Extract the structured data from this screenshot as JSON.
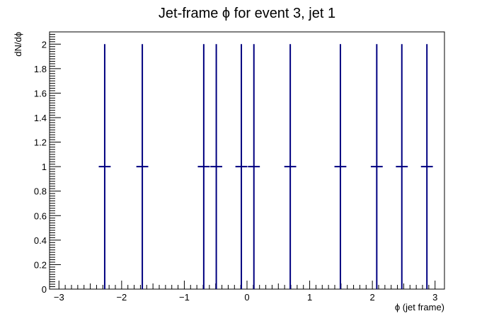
{
  "chart_data": {
    "type": "scatter",
    "title": "Jet-frame   ϕ for event 3, jet 1",
    "xlabel": "ϕ (jet frame)",
    "ylabel": "dN/dϕ",
    "xlim": [
      -3.15,
      3.15
    ],
    "ylim": [
      0,
      2.1
    ],
    "x_ticks": [
      -3,
      -2,
      -1,
      0,
      1,
      2,
      3
    ],
    "x_tick_labels": [
      "−3",
      "−2",
      "−1",
      "0",
      "1",
      "2",
      "3"
    ],
    "y_ticks": [
      0,
      0.2,
      0.4,
      0.6,
      0.8,
      1,
      1.2,
      1.4,
      1.6,
      1.8,
      2
    ],
    "y_tick_labels": [
      "0",
      "0.2",
      "0.4",
      "0.6",
      "0.8",
      "1",
      "1.2",
      "1.4",
      "1.6",
      "1.8",
      "2"
    ],
    "grid": false,
    "series": [
      {
        "color": "#000080",
        "points": [
          {
            "x": -2.27,
            "y": 1,
            "xerr": 0.095,
            "yerr": 1
          },
          {
            "x": -1.67,
            "y": 1,
            "xerr": 0.095,
            "yerr": 1
          },
          {
            "x": -0.69,
            "y": 1,
            "xerr": 0.095,
            "yerr": 1
          },
          {
            "x": -0.49,
            "y": 1,
            "xerr": 0.095,
            "yerr": 1
          },
          {
            "x": -0.09,
            "y": 1,
            "xerr": 0.095,
            "yerr": 1
          },
          {
            "x": 0.11,
            "y": 1,
            "xerr": 0.095,
            "yerr": 1
          },
          {
            "x": 0.69,
            "y": 1,
            "xerr": 0.095,
            "yerr": 1
          },
          {
            "x": 1.49,
            "y": 1,
            "xerr": 0.095,
            "yerr": 1
          },
          {
            "x": 2.07,
            "y": 1,
            "xerr": 0.095,
            "yerr": 1
          },
          {
            "x": 2.47,
            "y": 1,
            "xerr": 0.095,
            "yerr": 1
          },
          {
            "x": 2.87,
            "y": 1,
            "xerr": 0.095,
            "yerr": 1
          }
        ]
      }
    ]
  }
}
